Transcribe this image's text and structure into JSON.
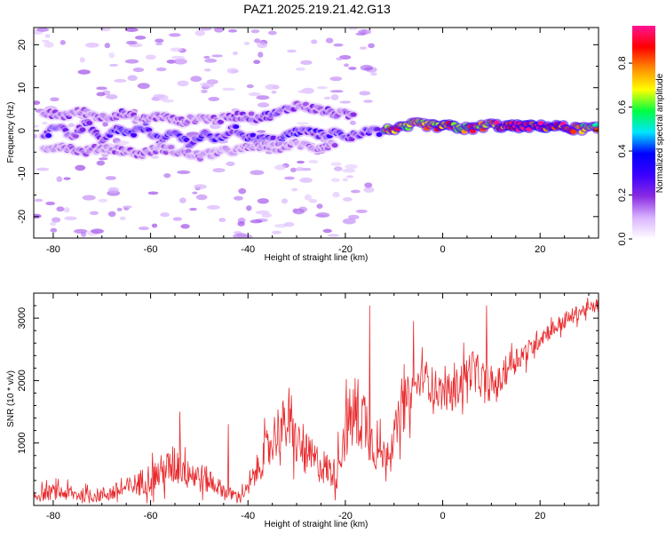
{
  "title": "PAZ1.2025.219.21.42.G13",
  "chart_data": [
    {
      "type": "heatmap",
      "xlabel": "Height of straight line (km)",
      "ylabel": "Frequency (Hz)",
      "xlim": [
        -84,
        32
      ],
      "ylim": [
        -25,
        24
      ],
      "xticks": [
        -80,
        -60,
        -40,
        -20,
        0,
        20
      ],
      "yticks": [
        -20,
        -10,
        0,
        10,
        20
      ],
      "colorbar": {
        "label": "Normalized spectral amplitude",
        "range": [
          0,
          0.97
        ],
        "ticks": [
          0.0,
          0.2,
          0.4,
          0.6,
          0.8
        ],
        "colormap": [
          "#ffffff",
          "#d9b3ff",
          "#8a2be2",
          "#3b00ff",
          "#0000ff",
          "#00e5ff",
          "#00ff40",
          "#ffff00",
          "#ff8c00",
          "#ff0000",
          "#ff1493"
        ]
      },
      "tracks": [
        {
          "x": [
            -82,
            -79,
            -76,
            -73,
            -70,
            -67,
            -64,
            -61,
            -58,
            -55,
            -52,
            -49,
            -46,
            -43,
            -40,
            -37,
            -34,
            -31,
            -28,
            -25,
            -22,
            -19,
            -16,
            -13
          ],
          "f": [
            -2,
            1.5,
            -1.5,
            2,
            -3,
            0.5,
            -1,
            1,
            -2.5,
            -0.5,
            -3,
            -1,
            -2,
            0.5,
            -1.5,
            -2,
            -2.5,
            -0.5,
            0,
            -1,
            -0.5,
            -1.5,
            0,
            -0.5
          ],
          "a": [
            0.25,
            0.3,
            0.2,
            0.28,
            0.25,
            0.3,
            0.35,
            0.3,
            0.28,
            0.32,
            0.3,
            0.33,
            0.3,
            0.25,
            0.3,
            0.35,
            0.3,
            0.3,
            0.28,
            0.25,
            0.3,
            0.28,
            0.25,
            0.3
          ]
        },
        {
          "x": [
            -82,
            -78,
            -74,
            -70,
            -66,
            -62,
            -58,
            -54,
            -50,
            -46,
            -42,
            -38,
            -34,
            -30,
            -26,
            -22,
            -18
          ],
          "f": [
            4,
            3.5,
            4.5,
            3,
            4,
            2.5,
            3.5,
            2,
            3,
            2.5,
            3.5,
            3,
            4,
            6,
            5,
            4,
            3.5
          ],
          "a": [
            0.18,
            0.2,
            0.16,
            0.18,
            0.2,
            0.15,
            0.18,
            0.16,
            0.17,
            0.18,
            0.2,
            0.22,
            0.25,
            0.2,
            0.22,
            0.2,
            0.18
          ]
        },
        {
          "x": [
            -82,
            -78,
            -74,
            -70,
            -66,
            -62,
            -58,
            -54,
            -50,
            -46,
            -42,
            -38,
            -34,
            -30,
            -26,
            -22
          ],
          "f": [
            -4,
            -3.5,
            -5,
            -4,
            -4.5,
            -5.5,
            -4,
            -5,
            -6,
            -5,
            -4.5,
            -3.5,
            -4,
            -3,
            -4,
            -3
          ],
          "a": [
            0.15,
            0.16,
            0.18,
            0.15,
            0.17,
            0.16,
            0.15,
            0.17,
            0.16,
            0.15,
            0.14,
            0.16,
            0.15,
            0.14,
            0.16,
            0.15
          ]
        },
        {
          "x": [
            -12,
            -10,
            -8,
            -6,
            -4,
            -2,
            0,
            2,
            4,
            6,
            8,
            10,
            12,
            14,
            16,
            18,
            20,
            22,
            24,
            26,
            28,
            30,
            32
          ],
          "f": [
            0,
            0.5,
            0.5,
            1.5,
            1.5,
            1,
            1,
            1,
            0.5,
            0.5,
            1,
            1.5,
            1,
            1,
            1,
            1,
            1,
            1,
            1,
            0.5,
            0.5,
            0.5,
            0.5
          ],
          "a": [
            0.7,
            0.75,
            0.8,
            0.65,
            0.7,
            0.75,
            0.9,
            0.85,
            0.7,
            0.8,
            0.75,
            0.7,
            0.95,
            0.95,
            0.97,
            0.95,
            0.97,
            0.95,
            0.95,
            0.8,
            0.75,
            0.7,
            0.7
          ]
        }
      ]
    },
    {
      "type": "line",
      "xlabel": "Height of straight line (km)",
      "ylabel": "SNR (10 * v/v)",
      "xlim": [
        -84,
        32
      ],
      "ylim": [
        0,
        3400
      ],
      "xticks": [
        -80,
        -60,
        -40,
        -20,
        0,
        20
      ],
      "yticks": [
        1000,
        2000,
        3000
      ],
      "series": [
        {
          "color": "#e8292c",
          "x": [
            -84,
            -80,
            -76,
            -72,
            -68,
            -64,
            -60,
            -56,
            -54,
            -52,
            -50,
            -48,
            -46,
            -44,
            -42,
            -40,
            -38,
            -36,
            -34,
            -32,
            -30,
            -28,
            -26,
            -24,
            -22,
            -20,
            -18,
            -16,
            -14,
            -12,
            -10,
            -8,
            -6,
            -4,
            -2,
            0,
            2,
            4,
            6,
            8,
            10,
            12,
            14,
            16,
            18,
            20,
            22,
            24,
            26,
            28,
            30,
            32
          ],
          "y": [
            150,
            220,
            180,
            150,
            200,
            300,
            450,
            600,
            700,
            550,
            450,
            400,
            300,
            200,
            150,
            250,
            600,
            900,
            1200,
            1300,
            1000,
            800,
            700,
            600,
            500,
            1200,
            1500,
            1400,
            900,
            800,
            1100,
            1600,
            1800,
            2100,
            1900,
            1800,
            1800,
            2000,
            2200,
            2000,
            1900,
            2000,
            2300,
            2400,
            2500,
            2700,
            2800,
            2900,
            3000,
            3100,
            3150,
            3200
          ],
          "noise": [
            150,
            180,
            170,
            150,
            200,
            250,
            350,
            450,
            550,
            450,
            350,
            300,
            200,
            150,
            120,
            180,
            350,
            500,
            600,
            650,
            550,
            500,
            450,
            400,
            350,
            700,
            900,
            800,
            500,
            400,
            450,
            600,
            500,
            400,
            450,
            400,
            400,
            500,
            450,
            400,
            350,
            350,
            300,
            300,
            250,
            250,
            200,
            200,
            180,
            180,
            150,
            150
          ],
          "highlights": {
            "x": [
              -54,
              -44,
              -15,
              -6,
              9
            ],
            "y": [
              1500,
              1300,
              3200,
              2950,
              3200
            ]
          }
        }
      ]
    }
  ]
}
